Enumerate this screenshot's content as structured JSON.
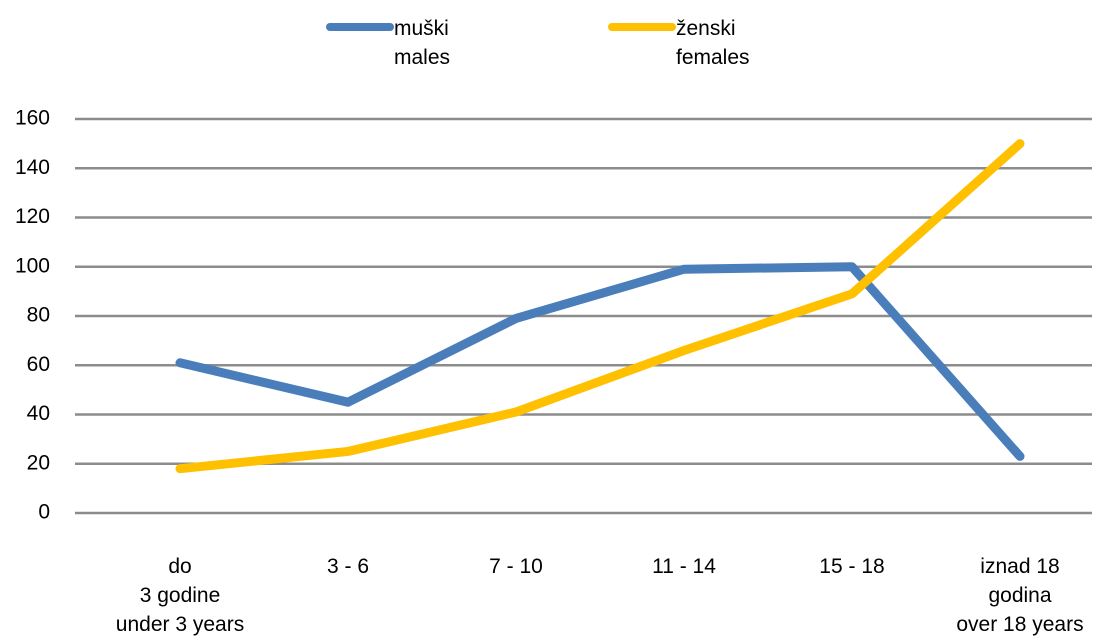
{
  "chart_data": {
    "type": "line",
    "categories": [
      "do\n3 godine\nunder 3 years",
      "3 - 6",
      "7 - 10",
      "11 - 14",
      "15 - 18",
      "iznad 18\ngodina\nover 18 years"
    ],
    "series": [
      {
        "name": "muški\nmales",
        "color": "#4a7ebb",
        "values": [
          61,
          45,
          79,
          99,
          100,
          23
        ]
      },
      {
        "name": "ženski\nfemales",
        "color": "#ffc000",
        "values": [
          18,
          25,
          41,
          66,
          89,
          150
        ]
      }
    ],
    "ylim": [
      0,
      160
    ],
    "yticks": [
      0,
      20,
      40,
      60,
      80,
      100,
      120,
      140,
      160
    ],
    "grid": true,
    "legend": "top"
  }
}
